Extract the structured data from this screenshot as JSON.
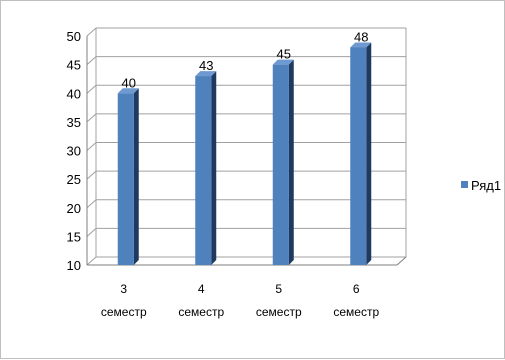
{
  "chart_data": {
    "type": "bar",
    "style": "3d-column",
    "categories": [
      "3 семестр",
      "4 семестр",
      "5 семестр",
      "6 семестр"
    ],
    "category_lines": [
      [
        "3",
        "семестр"
      ],
      [
        "4",
        "семестр"
      ],
      [
        "5",
        "семестр"
      ],
      [
        "6",
        "семестр"
      ]
    ],
    "series": [
      {
        "name": "Ряд1",
        "values": [
          40,
          43,
          45,
          48
        ]
      }
    ],
    "ylim": [
      10,
      50
    ],
    "yticks": [
      "10",
      "15",
      "20",
      "25",
      "30",
      "35",
      "40",
      "45",
      "50"
    ],
    "data_labels": [
      "40",
      "43",
      "45",
      "48"
    ],
    "grid": true,
    "legend_position": "right",
    "colors": {
      "bar_front": "#4f81bd",
      "bar_side": "#1f3a60",
      "bar_top": "#6f9ad1",
      "grid": "#a0a0a0",
      "axis": "#7f7f7f"
    }
  }
}
